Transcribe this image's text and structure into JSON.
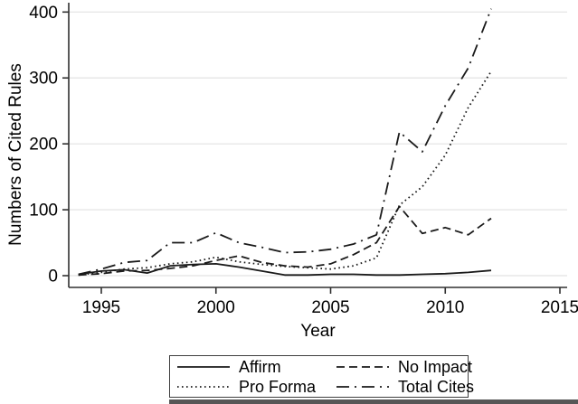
{
  "figure": {
    "background": "#ffffff"
  },
  "chart_data": {
    "type": "line",
    "title": "",
    "xlabel": "Year",
    "ylabel": "Numbers of Cited Rules",
    "xlim": [
      1993.6,
      2015.3
    ],
    "ylim": [
      0,
      410
    ],
    "xticks": [
      1995,
      2000,
      2005,
      2010,
      2015
    ],
    "yticks": [
      0,
      100,
      200,
      300,
      400
    ],
    "grid": "horizontal",
    "legend_position": "bottom-center-boxed",
    "x": [
      1994,
      1995,
      1996,
      1997,
      1998,
      1999,
      2000,
      2001,
      2002,
      2003,
      2004,
      2005,
      2006,
      2007,
      2008,
      2009,
      2010,
      2011,
      2012
    ],
    "series": [
      {
        "name": "Affirm",
        "style": "solid",
        "values": [
          2,
          7,
          9,
          4,
          15,
          17,
          18,
          13,
          7,
          1,
          1,
          2,
          2,
          1,
          1,
          2,
          3,
          5,
          8
        ]
      },
      {
        "name": "No Impact",
        "style": "dashed",
        "values": [
          1,
          3,
          7,
          8,
          11,
          15,
          23,
          30,
          20,
          15,
          13,
          18,
          32,
          50,
          105,
          64,
          73,
          62,
          87
        ]
      },
      {
        "name": "Pro Forma",
        "style": "dotted",
        "values": [
          1,
          5,
          10,
          12,
          18,
          21,
          28,
          21,
          17,
          14,
          12,
          10,
          15,
          27,
          107,
          135,
          183,
          255,
          310
        ]
      },
      {
        "name": "Total Cites",
        "style": "dash-dot",
        "values": [
          2,
          10,
          20,
          23,
          50,
          50,
          65,
          50,
          43,
          35,
          36,
          40,
          48,
          62,
          218,
          188,
          258,
          315,
          405
        ]
      }
    ],
    "colors": {
      "line": "#1a1a1a",
      "grid": "#e7e7e7",
      "axis": "#303030",
      "text": "#000000"
    }
  }
}
